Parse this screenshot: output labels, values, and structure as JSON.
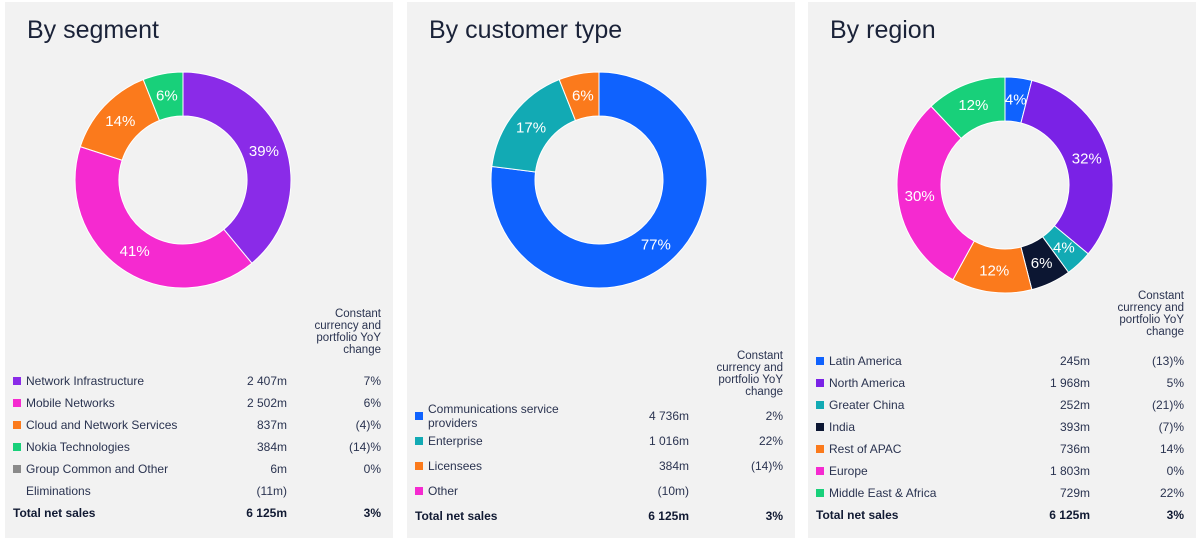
{
  "chart_data": [
    {
      "type": "pie",
      "title": "By segment",
      "header": "Constant currency and portfolio YoY change",
      "slices": [
        {
          "name": "Network Infrastructure",
          "pct": 39,
          "value": "2 407m",
          "change": "7%",
          "color": "#8a2be8"
        },
        {
          "name": "Mobile Networks",
          "pct": 41,
          "value": "2 502m",
          "change": "6%",
          "color": "#f52ad0"
        },
        {
          "name": "Cloud and Network Services",
          "pct": 14,
          "value": "837m",
          "change": "(4)%",
          "color": "#fb7a1c"
        },
        {
          "name": "Nokia Technologies",
          "pct": 6,
          "value": "384m",
          "change": "(14)%",
          "color": "#18d07a"
        },
        {
          "name": "Group Common and Other",
          "pct": 0,
          "value": "6m",
          "change": "0%",
          "color": "#8a8a8a"
        }
      ],
      "extra": [
        {
          "name": "Eliminations",
          "value": "(11m)",
          "change": ""
        }
      ],
      "total": {
        "name": "Total net sales",
        "value": "6 125m",
        "change": "3%"
      }
    },
    {
      "type": "pie",
      "title": "By customer type",
      "header": "Constant currency and portfolio YoY change",
      "slices": [
        {
          "name": "Communications service providers",
          "pct": 77,
          "value": "4 736m",
          "change": "2%",
          "color": "#0f62fe"
        },
        {
          "name": "Enterprise",
          "pct": 17,
          "value": "1 016m",
          "change": "22%",
          "color": "#12aab4"
        },
        {
          "name": "Licensees",
          "pct": 6,
          "value": "384m",
          "change": "(14)%",
          "color": "#fb7a1c"
        },
        {
          "name": "Other",
          "pct": 0,
          "value": "(10m)",
          "change": "",
          "color": "#f52ad0"
        }
      ],
      "extra": [],
      "total": {
        "name": "Total net sales",
        "value": "6 125m",
        "change": "3%"
      }
    },
    {
      "type": "pie",
      "title": "By region",
      "header": "Constant currency and portfolio YoY change",
      "slices": [
        {
          "name": "Latin America",
          "pct": 4,
          "value": "245m",
          "change": "(13)%",
          "color": "#0f62fe"
        },
        {
          "name": "North America",
          "pct": 32,
          "value": "1 968m",
          "change": "5%",
          "color": "#7a22e6"
        },
        {
          "name": "Greater China",
          "pct": 4,
          "value": "252m",
          "change": "(21)%",
          "color": "#12aab4"
        },
        {
          "name": "India",
          "pct": 6,
          "value": "393m",
          "change": "(7)%",
          "color": "#0c1632"
        },
        {
          "name": "Rest of APAC",
          "pct": 12,
          "value": "736m",
          "change": "14%",
          "color": "#fb7a1c"
        },
        {
          "name": "Europe",
          "pct": 30,
          "value": "1 803m",
          "change": "0%",
          "color": "#f52ad0"
        },
        {
          "name": "Middle East & Africa",
          "pct": 12,
          "value": "729m",
          "change": "22%",
          "color": "#18d07a"
        }
      ],
      "extra": [],
      "total": {
        "name": "Total net sales",
        "value": "6 125m",
        "change": "3%"
      }
    }
  ]
}
